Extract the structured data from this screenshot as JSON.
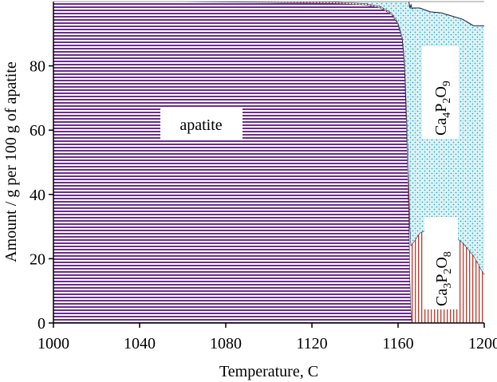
{
  "chart_data": {
    "type": "area",
    "stacked": true,
    "xlabel": "Temperature, C",
    "ylabel": "Amount / g per 100 g of apatite",
    "xlim": [
      1000,
      1200
    ],
    "ylim": [
      0,
      100
    ],
    "x_ticks": [
      "1000",
      "1040",
      "1080",
      "1120",
      "1160",
      "1200"
    ],
    "y_ticks": [
      "0",
      "20",
      "40",
      "60",
      "80"
    ],
    "grid": false,
    "legend": "none",
    "series": [
      {
        "name": "apatite",
        "color": "#6a2c8e",
        "pattern": "horizontal-lines",
        "points": [
          [
            1000,
            100
          ],
          [
            1060,
            100
          ],
          [
            1100,
            99.8
          ],
          [
            1130,
            99.5
          ],
          [
            1145,
            99
          ],
          [
            1152,
            98
          ],
          [
            1157,
            96
          ],
          [
            1160,
            93
          ],
          [
            1162,
            88
          ],
          [
            1163,
            80
          ],
          [
            1164,
            60
          ],
          [
            1165,
            35
          ],
          [
            1165.5,
            15
          ],
          [
            1166,
            4
          ],
          [
            1166.5,
            0
          ],
          [
            1200,
            0
          ]
        ]
      },
      {
        "name": "Ca3P2O8",
        "color": "#c0392b",
        "pattern": "vertical-lines",
        "points": [
          [
            1000,
            0
          ],
          [
            1160,
            0.5
          ],
          [
            1162,
            1
          ],
          [
            1163,
            2.5
          ],
          [
            1164,
            6
          ],
          [
            1165,
            12
          ],
          [
            1165.5,
            16
          ],
          [
            1166,
            20
          ],
          [
            1166.5,
            24.8
          ],
          [
            1167,
            25
          ],
          [
            1170,
            28
          ],
          [
            1175,
            29.5
          ],
          [
            1180,
            29
          ],
          [
            1185,
            27.5
          ],
          [
            1190,
            25
          ],
          [
            1195,
            21
          ],
          [
            1200,
            15
          ]
        ]
      },
      {
        "name": "Ca4P2O9",
        "color": "#2aa8c2",
        "pattern": "dots",
        "points": [
          [
            1000,
            0
          ],
          [
            1120,
            0.2
          ],
          [
            1130,
            0.5
          ],
          [
            1140,
            1
          ],
          [
            1145,
            1
          ],
          [
            1152,
            2
          ],
          [
            1157,
            4
          ],
          [
            1160,
            6.5
          ],
          [
            1162,
            11
          ],
          [
            1163,
            17.5
          ],
          [
            1164,
            34
          ],
          [
            1165,
            53
          ],
          [
            1165.5,
            67
          ],
          [
            1166,
            75
          ],
          [
            1166.5,
            73
          ],
          [
            1167,
            73
          ],
          [
            1170,
            70
          ],
          [
            1175,
            67.3
          ],
          [
            1180,
            67.5
          ],
          [
            1185,
            68
          ],
          [
            1190,
            69.5
          ],
          [
            1195,
            71.5
          ],
          [
            1200,
            77.5
          ]
        ]
      }
    ],
    "labels": {
      "apatite": "apatite",
      "ca4": {
        "base": "Ca",
        "s1": "4",
        "mid": "P",
        "s2": "2",
        "end": "O",
        "s3": "9"
      },
      "ca3": {
        "base": "Ca",
        "s1": "3",
        "mid": "P",
        "s2": "2",
        "end": "O",
        "s3": "8"
      }
    }
  }
}
